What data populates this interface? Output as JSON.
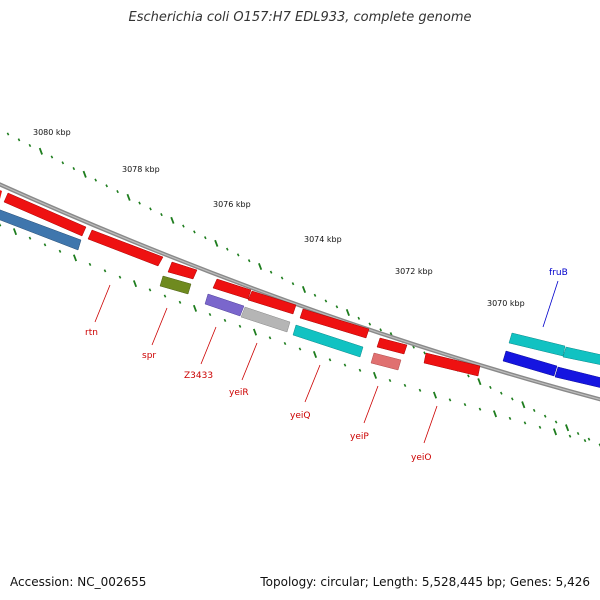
{
  "header": {
    "title": "Escherichia coli O157:H7 EDL933, complete genome"
  },
  "footer": {
    "accession": "Accession: NC_002655",
    "summary": "Topology: circular; Length: 5,528,445 bp; Genes: 5,426"
  },
  "map": {
    "backbone_color": "#777777",
    "tick_color": "#1e7d1e",
    "tick_labels": [
      "3080 kbp",
      "3078 kbp",
      "3076 kbp",
      "3074 kbp",
      "3072 kbp",
      "3070 kbp"
    ],
    "gene_labels": [
      {
        "name": "rtn",
        "color": "#cc0000"
      },
      {
        "name": "spr",
        "color": "#cc0000"
      },
      {
        "name": "Z3433",
        "color": "#cc0000"
      },
      {
        "name": "yeiR",
        "color": "#cc0000"
      },
      {
        "name": "yeiQ",
        "color": "#cc0000"
      },
      {
        "name": "yeiP",
        "color": "#cc0000"
      },
      {
        "name": "yeiO",
        "color": "#cc0000"
      },
      {
        "name": "fruB",
        "color": "#0000cc"
      }
    ],
    "feature_colors": {
      "red": "#ee1111",
      "steelblue": "#3f76ad",
      "olive": "#6f8a1f",
      "violet": "#7a66cc",
      "silver": "#b5b5b5",
      "cyan": "#11c2c2",
      "pink": "#e07070",
      "blue": "#1515e0"
    }
  }
}
